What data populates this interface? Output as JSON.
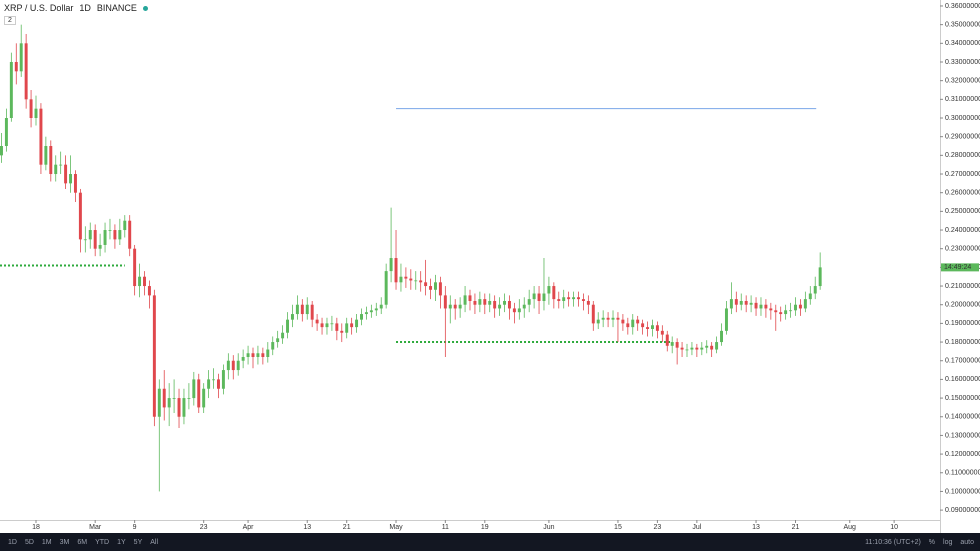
{
  "header": {
    "symbol": "XRP / U.S. Dollar",
    "interval": "1D",
    "exchange": "BINANCE",
    "indicator_count": "2"
  },
  "chart_data": {
    "type": "candlestick",
    "up_color": "#5cb85c",
    "down_color": "#e0474c",
    "open": [
      0.28,
      0.285,
      0.3,
      0.33,
      0.325,
      0.34,
      0.31,
      0.3,
      0.305,
      0.275,
      0.285,
      0.27,
      0.275,
      0.275,
      0.265,
      0.27,
      0.26,
      0.235,
      0.235,
      0.24,
      0.23,
      0.232,
      0.24,
      0.24,
      0.235,
      0.24,
      0.245,
      0.23,
      0.21,
      0.215,
      0.21,
      0.205,
      0.14,
      0.155,
      0.145,
      0.15,
      0.15,
      0.14,
      0.15,
      0.15,
      0.16,
      0.145,
      0.155,
      0.16,
      0.16,
      0.155,
      0.165,
      0.17,
      0.165,
      0.17,
      0.172,
      0.174,
      0.172,
      0.174,
      0.172,
      0.176,
      0.18,
      0.182,
      0.185,
      0.192,
      0.195,
      0.2,
      0.195,
      0.2,
      0.192,
      0.19,
      0.188,
      0.19,
      0.19,
      0.186,
      0.185,
      0.19,
      0.188,
      0.192,
      0.195,
      0.196,
      0.197,
      0.198,
      0.2,
      0.218,
      0.225,
      0.212,
      0.215,
      0.214,
      0.213,
      0.213,
      0.212,
      0.21,
      0.208,
      0.212,
      0.205,
      0.198,
      0.2,
      0.198,
      0.2,
      0.205,
      0.202,
      0.2,
      0.203,
      0.2,
      0.202,
      0.198,
      0.2,
      0.202,
      0.198,
      0.196,
      0.198,
      0.2,
      0.203,
      0.206,
      0.202,
      0.206,
      0.21,
      0.203,
      0.202,
      0.204,
      0.203,
      0.204,
      0.203,
      0.202,
      0.2,
      0.19,
      0.192,
      0.193,
      0.192,
      0.193,
      0.192,
      0.19,
      0.188,
      0.192,
      0.19,
      0.188,
      0.187,
      0.189,
      0.186,
      0.184,
      0.178,
      0.18,
      0.177,
      0.176,
      0.176,
      0.177,
      0.176,
      0.177,
      0.178,
      0.176,
      0.18,
      0.186,
      0.198,
      0.203,
      0.2,
      0.202,
      0.2,
      0.201,
      0.198,
      0.2,
      0.198,
      0.197,
      0.196,
      0.195,
      0.197,
      0.197,
      0.2,
      0.198,
      0.203,
      0.206,
      0.21
    ],
    "high": [
      0.292,
      0.305,
      0.335,
      0.34,
      0.35,
      0.345,
      0.315,
      0.312,
      0.308,
      0.29,
      0.288,
      0.28,
      0.282,
      0.28,
      0.28,
      0.272,
      0.262,
      0.242,
      0.244,
      0.243,
      0.238,
      0.244,
      0.246,
      0.243,
      0.246,
      0.248,
      0.248,
      0.232,
      0.222,
      0.218,
      0.213,
      0.208,
      0.16,
      0.165,
      0.158,
      0.16,
      0.155,
      0.155,
      0.158,
      0.164,
      0.163,
      0.158,
      0.165,
      0.166,
      0.163,
      0.168,
      0.174,
      0.173,
      0.174,
      0.176,
      0.178,
      0.177,
      0.178,
      0.177,
      0.18,
      0.183,
      0.186,
      0.189,
      0.196,
      0.2,
      0.205,
      0.203,
      0.204,
      0.202,
      0.195,
      0.193,
      0.193,
      0.194,
      0.193,
      0.19,
      0.193,
      0.193,
      0.195,
      0.198,
      0.199,
      0.2,
      0.201,
      0.204,
      0.222,
      0.252,
      0.24,
      0.222,
      0.22,
      0.219,
      0.218,
      0.218,
      0.224,
      0.214,
      0.216,
      0.215,
      0.21,
      0.205,
      0.203,
      0.204,
      0.21,
      0.208,
      0.206,
      0.207,
      0.206,
      0.206,
      0.205,
      0.204,
      0.206,
      0.205,
      0.201,
      0.203,
      0.204,
      0.208,
      0.21,
      0.21,
      0.225,
      0.215,
      0.212,
      0.207,
      0.208,
      0.207,
      0.207,
      0.207,
      0.206,
      0.205,
      0.202,
      0.196,
      0.197,
      0.196,
      0.197,
      0.196,
      0.195,
      0.193,
      0.195,
      0.194,
      0.192,
      0.191,
      0.192,
      0.191,
      0.189,
      0.186,
      0.183,
      0.182,
      0.18,
      0.179,
      0.18,
      0.179,
      0.18,
      0.181,
      0.18,
      0.183,
      0.19,
      0.202,
      0.212,
      0.207,
      0.206,
      0.205,
      0.205,
      0.204,
      0.204,
      0.203,
      0.201,
      0.2,
      0.199,
      0.2,
      0.201,
      0.204,
      0.203,
      0.207,
      0.21,
      0.215,
      0.228
    ],
    "low": [
      0.276,
      0.282,
      0.298,
      0.318,
      0.322,
      0.305,
      0.295,
      0.296,
      0.27,
      0.272,
      0.266,
      0.266,
      0.27,
      0.262,
      0.26,
      0.255,
      0.228,
      0.228,
      0.23,
      0.226,
      0.226,
      0.228,
      0.235,
      0.23,
      0.232,
      0.236,
      0.226,
      0.205,
      0.204,
      0.205,
      0.198,
      0.135,
      0.1,
      0.138,
      0.135,
      0.142,
      0.134,
      0.136,
      0.144,
      0.146,
      0.142,
      0.142,
      0.15,
      0.155,
      0.15,
      0.152,
      0.16,
      0.16,
      0.162,
      0.166,
      0.168,
      0.166,
      0.168,
      0.168,
      0.169,
      0.173,
      0.177,
      0.179,
      0.182,
      0.188,
      0.192,
      0.191,
      0.192,
      0.188,
      0.186,
      0.184,
      0.184,
      0.186,
      0.181,
      0.18,
      0.182,
      0.184,
      0.185,
      0.189,
      0.192,
      0.193,
      0.194,
      0.195,
      0.198,
      0.212,
      0.208,
      0.207,
      0.209,
      0.208,
      0.208,
      0.207,
      0.205,
      0.203,
      0.202,
      0.198,
      0.172,
      0.19,
      0.192,
      0.193,
      0.196,
      0.197,
      0.195,
      0.196,
      0.195,
      0.196,
      0.193,
      0.194,
      0.196,
      0.192,
      0.19,
      0.192,
      0.193,
      0.196,
      0.198,
      0.195,
      0.197,
      0.2,
      0.198,
      0.198,
      0.198,
      0.199,
      0.199,
      0.199,
      0.197,
      0.195,
      0.186,
      0.187,
      0.188,
      0.188,
      0.188,
      0.18,
      0.186,
      0.184,
      0.184,
      0.186,
      0.184,
      0.183,
      0.183,
      0.182,
      0.18,
      0.175,
      0.174,
      0.168,
      0.172,
      0.172,
      0.173,
      0.172,
      0.173,
      0.174,
      0.172,
      0.174,
      0.178,
      0.184,
      0.195,
      0.196,
      0.197,
      0.196,
      0.196,
      0.194,
      0.194,
      0.193,
      0.192,
      0.186,
      0.191,
      0.192,
      0.193,
      0.194,
      0.194,
      0.196,
      0.2,
      0.203,
      0.208
    ],
    "close": [
      0.285,
      0.3,
      0.33,
      0.325,
      0.34,
      0.31,
      0.3,
      0.305,
      0.275,
      0.285,
      0.27,
      0.275,
      0.275,
      0.265,
      0.27,
      0.26,
      0.235,
      0.235,
      0.24,
      0.23,
      0.232,
      0.24,
      0.24,
      0.235,
      0.24,
      0.245,
      0.23,
      0.21,
      0.215,
      0.21,
      0.205,
      0.14,
      0.155,
      0.145,
      0.15,
      0.15,
      0.14,
      0.15,
      0.15,
      0.16,
      0.145,
      0.155,
      0.16,
      0.16,
      0.155,
      0.165,
      0.17,
      0.165,
      0.17,
      0.172,
      0.174,
      0.172,
      0.174,
      0.172,
      0.176,
      0.18,
      0.182,
      0.185,
      0.192,
      0.195,
      0.2,
      0.195,
      0.2,
      0.192,
      0.19,
      0.188,
      0.19,
      0.19,
      0.186,
      0.185,
      0.19,
      0.188,
      0.192,
      0.195,
      0.196,
      0.197,
      0.198,
      0.2,
      0.218,
      0.225,
      0.212,
      0.215,
      0.214,
      0.213,
      0.213,
      0.212,
      0.21,
      0.208,
      0.212,
      0.205,
      0.198,
      0.2,
      0.198,
      0.2,
      0.205,
      0.202,
      0.2,
      0.203,
      0.2,
      0.202,
      0.198,
      0.2,
      0.202,
      0.198,
      0.196,
      0.198,
      0.2,
      0.203,
      0.206,
      0.202,
      0.206,
      0.21,
      0.203,
      0.202,
      0.204,
      0.203,
      0.204,
      0.203,
      0.202,
      0.2,
      0.19,
      0.192,
      0.193,
      0.192,
      0.193,
      0.192,
      0.19,
      0.188,
      0.192,
      0.19,
      0.188,
      0.187,
      0.189,
      0.186,
      0.184,
      0.178,
      0.18,
      0.177,
      0.176,
      0.176,
      0.177,
      0.176,
      0.177,
      0.178,
      0.176,
      0.18,
      0.186,
      0.198,
      0.203,
      0.2,
      0.202,
      0.2,
      0.201,
      0.198,
      0.2,
      0.198,
      0.197,
      0.196,
      0.195,
      0.197,
      0.197,
      0.2,
      0.198,
      0.203,
      0.206,
      0.21,
      0.22
    ],
    "first_day": 1,
    "xlim": [
      0.7,
      191.3
    ],
    "xticks": [
      {
        "value": 8,
        "label": "18"
      },
      {
        "value": 20,
        "label": "Mar"
      },
      {
        "value": 28,
        "label": "9"
      },
      {
        "value": 42,
        "label": "23"
      },
      {
        "value": 51,
        "label": "Apr"
      },
      {
        "value": 63,
        "label": "13"
      },
      {
        "value": 71,
        "label": "21"
      },
      {
        "value": 81,
        "label": "May"
      },
      {
        "value": 91,
        "label": "11"
      },
      {
        "value": 99,
        "label": "19"
      },
      {
        "value": 112,
        "label": "Jun"
      },
      {
        "value": 126,
        "label": "15"
      },
      {
        "value": 134,
        "label": "23"
      },
      {
        "value": 142,
        "label": "Jul"
      },
      {
        "value": 154,
        "label": "13"
      },
      {
        "value": 162,
        "label": "21"
      },
      {
        "value": 173,
        "label": "Aug"
      },
      {
        "value": 182,
        "label": "10"
      }
    ],
    "ylim": [
      0.0847,
      0.3632
    ],
    "yticks": [
      {
        "value": 0.09,
        "label": "0.09000000"
      },
      {
        "value": 0.1,
        "label": "0.10000000"
      },
      {
        "value": 0.11,
        "label": "0.11000000"
      },
      {
        "value": 0.12,
        "label": "0.12000000"
      },
      {
        "value": 0.13,
        "label": "0.13000000"
      },
      {
        "value": 0.14,
        "label": "0.14000000"
      },
      {
        "value": 0.15,
        "label": "0.15000000"
      },
      {
        "value": 0.16,
        "label": "0.16000000"
      },
      {
        "value": 0.17,
        "label": "0.17000000"
      },
      {
        "value": 0.18,
        "label": "0.18000000"
      },
      {
        "value": 0.19,
        "label": "0.19000000"
      },
      {
        "value": 0.2,
        "label": "0.20000000"
      },
      {
        "value": 0.21,
        "label": "0.21000000"
      },
      {
        "value": 0.22,
        "label": "0.22000000"
      },
      {
        "value": 0.23,
        "label": "0.23000000"
      },
      {
        "value": 0.24,
        "label": "0.24000000"
      },
      {
        "value": 0.25,
        "label": "0.25000000"
      },
      {
        "value": 0.26,
        "label": "0.26000000"
      },
      {
        "value": 0.27,
        "label": "0.27000000"
      },
      {
        "value": 0.28,
        "label": "0.28000000"
      },
      {
        "value": 0.29,
        "label": "0.29000000"
      },
      {
        "value": 0.3,
        "label": "0.30000000"
      },
      {
        "value": 0.31,
        "label": "0.31000000"
      },
      {
        "value": 0.32,
        "label": "0.32000000"
      },
      {
        "value": 0.33,
        "label": "0.33000000"
      },
      {
        "value": 0.34,
        "label": "0.34000000"
      },
      {
        "value": 0.35,
        "label": "0.35000000"
      },
      {
        "value": 0.36,
        "label": "0.36000000"
      }
    ],
    "levels": [
      {
        "value": 0.305,
        "x": [
          81,
          166.2
        ],
        "color": "#7aa6e8",
        "dotted": false
      },
      {
        "value": 0.221,
        "x": [
          0.7,
          26
        ],
        "color": "#2eaa3c",
        "dotted": true
      },
      {
        "value": 0.18,
        "x": [
          81,
          136.6
        ],
        "color": "#2eaa3c",
        "dotted": true
      }
    ],
    "countdown": "14:49:24"
  },
  "toolbar": {
    "ranges": [
      "1D",
      "5D",
      "1M",
      "3M",
      "6M",
      "YTD",
      "1Y",
      "5Y",
      "All"
    ],
    "clock": "11:10:36 (UTC+2)",
    "options": [
      "%",
      "log",
      "auto"
    ]
  }
}
